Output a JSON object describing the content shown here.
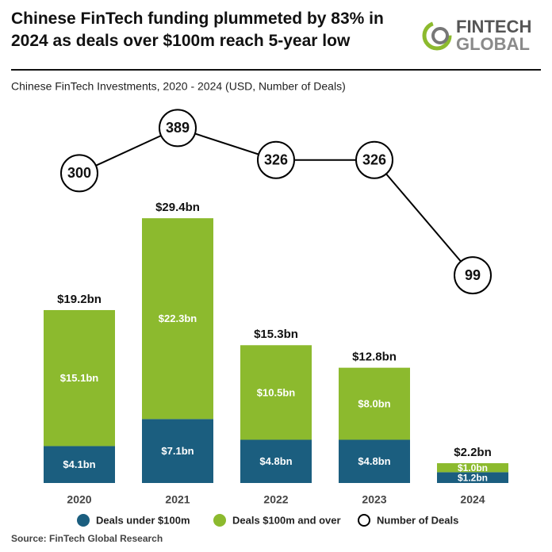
{
  "header": {
    "title": "Chinese FinTech funding plummeted by 83% in 2024 as deals over $100m reach 5-year low",
    "logo": [
      "FINTECH",
      "GLOBAL"
    ]
  },
  "chart_data": {
    "type": "bar",
    "subtitle": "Chinese FinTech Investments, 2020 - 2024 (USD, Number of Deals)",
    "categories": [
      "2020",
      "2021",
      "2022",
      "2023",
      "2024"
    ],
    "stacked": true,
    "ylim": [
      0,
      45
    ],
    "y2lim": [
      -310,
      488
    ],
    "series": [
      {
        "name": "Deals under $100m",
        "color": "#1b5e7f",
        "values": [
          4.1,
          7.1,
          4.8,
          4.8,
          1.2
        ],
        "value_labels": [
          "$4.1bn",
          "$7.1bn",
          "$4.8bn",
          "$4.8bn",
          "$1.2bn"
        ]
      },
      {
        "name": "Deals $100m and over",
        "color": "#8cba2e",
        "values": [
          15.1,
          22.3,
          10.5,
          8.0,
          1.0
        ],
        "value_labels": [
          "$15.1bn",
          "$22.3bn",
          "$10.5bn",
          "$8.0bn",
          "$1.0bn"
        ]
      },
      {
        "name": "Number of Deals",
        "type": "line",
        "axis": "y2",
        "color": "#000000",
        "values": [
          300,
          389,
          326,
          326,
          99
        ]
      }
    ],
    "totals": {
      "values": [
        19.2,
        29.4,
        15.3,
        12.8,
        2.2
      ],
      "value_labels": [
        "$19.2bn",
        "$29.4bn",
        "$15.3bn",
        "$12.8bn",
        "$2.2bn"
      ]
    },
    "source": "Source: FinTech Global Research"
  }
}
